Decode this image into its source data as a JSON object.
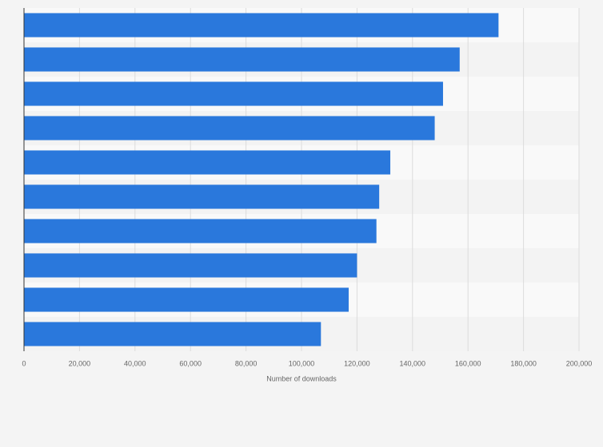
{
  "chart_data": {
    "type": "bar",
    "orientation": "horizontal",
    "xlabel": "Number of downloads",
    "categories": [
      null,
      null,
      null,
      null,
      null,
      null,
      null,
      null,
      null,
      null
    ],
    "values": [
      171000,
      157000,
      151000,
      148000,
      132000,
      128000,
      127000,
      120000,
      117000,
      107000
    ],
    "color": "#2a78dc",
    "xlim": [
      0,
      200000
    ],
    "xticks": [
      0,
      {
        "value": 20000,
        "label": "20,000"
      },
      {
        "value": 40000,
        "label": "40,000"
      },
      {
        "value": 60000,
        "label": "60,000"
      },
      {
        "value": 80000,
        "label": "80,000"
      },
      {
        "value": 100000,
        "label": "100,000"
      },
      {
        "value": 120000,
        "label": "120,000"
      },
      {
        "value": 140000,
        "label": "140,000"
      },
      {
        "value": 160000,
        "label": "160,000"
      },
      {
        "value": 180000,
        "label": "180,000"
      },
      {
        "value": 200000,
        "label": "200,000"
      }
    ],
    "grid": true
  }
}
